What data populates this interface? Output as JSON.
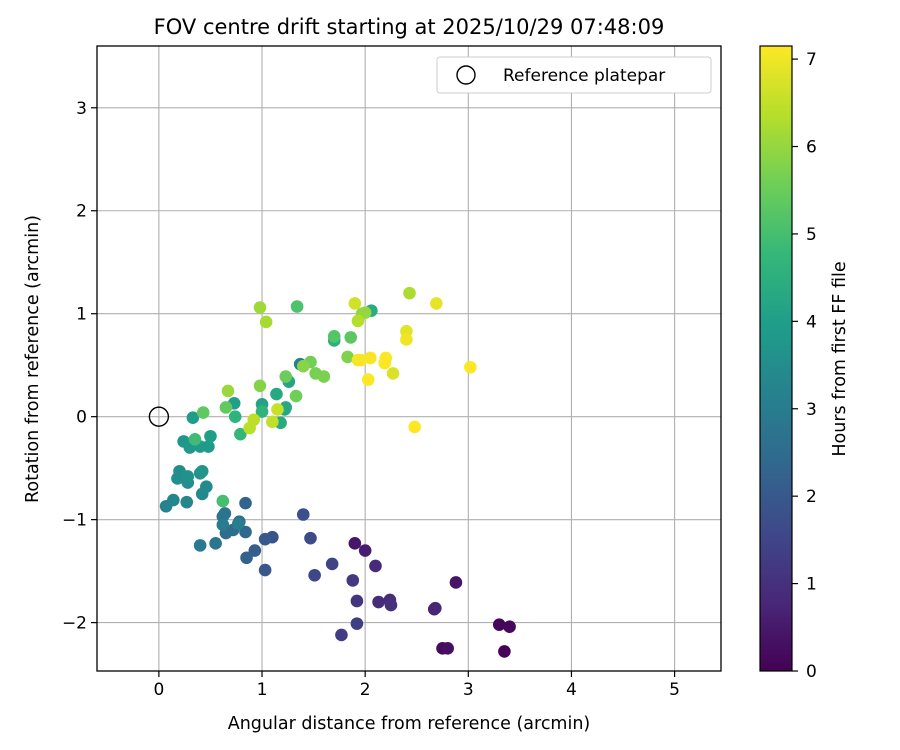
{
  "chart_data": {
    "type": "scatter",
    "title": "FOV centre drift starting at 2025/10/29 07:48:09",
    "xlabel": "Angular distance from reference (arcmin)",
    "ylabel": "Rotation from reference (arcmin)",
    "xlim": [
      -0.6,
      5.45
    ],
    "ylim": [
      -2.47,
      3.6
    ],
    "xticks": [
      0,
      1,
      2,
      3,
      4,
      5
    ],
    "yticks": [
      -2,
      -1,
      0,
      1,
      2,
      3
    ],
    "grid": true,
    "legend": {
      "position": "top-right",
      "entries": [
        "Reference platepar"
      ]
    },
    "reference_point": {
      "x": 0,
      "y": 0,
      "label": "Reference platepar"
    },
    "colorbar": {
      "label": "Hours from first FF file",
      "range": [
        0,
        7.15
      ],
      "ticks": [
        0,
        1,
        2,
        3,
        4,
        5,
        6,
        7
      ],
      "colormap": "viridis",
      "stops": [
        "#440154",
        "#482878",
        "#3e4989",
        "#31688e",
        "#26828e",
        "#1f9e89",
        "#35b779",
        "#6ece58",
        "#b5de2b",
        "#fde725"
      ]
    },
    "points": [
      {
        "x": 3.35,
        "y": -2.28,
        "t": 0.05
      },
      {
        "x": 3.3,
        "y": -2.02,
        "t": 0.1
      },
      {
        "x": 3.4,
        "y": -2.04,
        "t": 0.15
      },
      {
        "x": 2.75,
        "y": -2.25,
        "t": 0.2
      },
      {
        "x": 2.8,
        "y": -2.25,
        "t": 0.3
      },
      {
        "x": 2.88,
        "y": -1.61,
        "t": 0.4
      },
      {
        "x": 1.9,
        "y": -1.23,
        "t": 0.45
      },
      {
        "x": 2.0,
        "y": -1.3,
        "t": 0.6
      },
      {
        "x": 2.67,
        "y": -1.87,
        "t": 0.7
      },
      {
        "x": 2.68,
        "y": -1.86,
        "t": 0.75
      },
      {
        "x": 2.1,
        "y": -1.45,
        "t": 0.85
      },
      {
        "x": 2.13,
        "y": -1.8,
        "t": 0.9
      },
      {
        "x": 2.24,
        "y": -1.78,
        "t": 0.95
      },
      {
        "x": 2.25,
        "y": -1.83,
        "t": 1.0
      },
      {
        "x": 1.92,
        "y": -1.79,
        "t": 1.1
      },
      {
        "x": 1.88,
        "y": -1.59,
        "t": 1.2
      },
      {
        "x": 1.77,
        "y": -2.12,
        "t": 1.3
      },
      {
        "x": 1.92,
        "y": -2.01,
        "t": 1.35
      },
      {
        "x": 1.68,
        "y": -1.43,
        "t": 1.45
      },
      {
        "x": 1.51,
        "y": -1.54,
        "t": 1.55
      },
      {
        "x": 1.47,
        "y": -1.18,
        "t": 1.65
      },
      {
        "x": 1.4,
        "y": -0.95,
        "t": 1.75
      },
      {
        "x": 1.1,
        "y": -1.17,
        "t": 1.85
      },
      {
        "x": 1.03,
        "y": -1.49,
        "t": 1.95
      },
      {
        "x": 1.03,
        "y": -1.19,
        "t": 2.0
      },
      {
        "x": 0.93,
        "y": -1.3,
        "t": 2.1
      },
      {
        "x": 0.85,
        "y": -1.37,
        "t": 2.2
      },
      {
        "x": 0.84,
        "y": -0.84,
        "t": 2.3
      },
      {
        "x": 0.84,
        "y": -1.12,
        "t": 2.4
      },
      {
        "x": 0.65,
        "y": -1.13,
        "t": 2.5
      },
      {
        "x": 0.72,
        "y": -1.1,
        "t": 2.55
      },
      {
        "x": 0.78,
        "y": -1.02,
        "t": 2.6
      },
      {
        "x": 0.62,
        "y": -0.97,
        "t": 2.7
      },
      {
        "x": 0.64,
        "y": -0.94,
        "t": 2.75
      },
      {
        "x": 0.55,
        "y": -1.23,
        "t": 2.8
      },
      {
        "x": 0.4,
        "y": -1.25,
        "t": 2.9
      },
      {
        "x": 0.62,
        "y": -1.05,
        "t": 3.0
      },
      {
        "x": 0.77,
        "y": -1.04,
        "t": 3.05
      },
      {
        "x": 1.37,
        "y": 0.51,
        "t": 3.1
      },
      {
        "x": 0.07,
        "y": -0.87,
        "t": 3.2
      },
      {
        "x": 0.14,
        "y": -0.81,
        "t": 3.25
      },
      {
        "x": 0.27,
        "y": -0.83,
        "t": 3.3
      },
      {
        "x": 0.42,
        "y": -0.75,
        "t": 3.35
      },
      {
        "x": 0.46,
        "y": -0.68,
        "t": 3.4
      },
      {
        "x": 0.28,
        "y": -0.64,
        "t": 3.45
      },
      {
        "x": 0.2,
        "y": -0.53,
        "t": 3.5
      },
      {
        "x": 0.18,
        "y": -0.6,
        "t": 3.55
      },
      {
        "x": 0.28,
        "y": -0.58,
        "t": 3.6
      },
      {
        "x": 0.4,
        "y": -0.55,
        "t": 3.65
      },
      {
        "x": 0.42,
        "y": -0.53,
        "t": 3.7
      },
      {
        "x": 0.24,
        "y": -0.24,
        "t": 3.75
      },
      {
        "x": 0.3,
        "y": -0.3,
        "t": 3.8
      },
      {
        "x": 0.4,
        "y": -0.29,
        "t": 3.85
      },
      {
        "x": 0.48,
        "y": -0.29,
        "t": 3.9
      },
      {
        "x": 0.33,
        "y": -0.01,
        "t": 3.95
      },
      {
        "x": 0.5,
        "y": -0.19,
        "t": 4.0
      },
      {
        "x": 0.73,
        "y": 0.13,
        "t": 4.05
      },
      {
        "x": 1.0,
        "y": 0.12,
        "t": 4.1
      },
      {
        "x": 1.22,
        "y": 0.07,
        "t": 4.15
      },
      {
        "x": 1.26,
        "y": 0.34,
        "t": 4.2
      },
      {
        "x": 1.23,
        "y": 0.09,
        "t": 4.25
      },
      {
        "x": 1.14,
        "y": 0.22,
        "t": 4.3
      },
      {
        "x": 1.18,
        "y": -0.06,
        "t": 4.35
      },
      {
        "x": 2.06,
        "y": 1.03,
        "t": 4.4
      },
      {
        "x": 1.7,
        "y": 0.74,
        "t": 4.5
      },
      {
        "x": 0.74,
        "y": 0.0,
        "t": 4.6
      },
      {
        "x": 1.0,
        "y": 0.05,
        "t": 4.65
      },
      {
        "x": 0.79,
        "y": -0.17,
        "t": 4.75
      },
      {
        "x": 0.35,
        "y": -0.22,
        "t": 4.9
      },
      {
        "x": 0.62,
        "y": -0.82,
        "t": 5.0
      },
      {
        "x": 1.34,
        "y": 1.07,
        "t": 5.1
      },
      {
        "x": 1.7,
        "y": 0.78,
        "t": 5.2
      },
      {
        "x": 1.86,
        "y": 0.77,
        "t": 5.3
      },
      {
        "x": 0.43,
        "y": 0.04,
        "t": 5.35
      },
      {
        "x": 0.65,
        "y": 0.09,
        "t": 5.4
      },
      {
        "x": 1.23,
        "y": 0.39,
        "t": 5.5
      },
      {
        "x": 1.33,
        "y": 0.2,
        "t": 5.55
      },
      {
        "x": 1.47,
        "y": 0.53,
        "t": 5.6
      },
      {
        "x": 1.52,
        "y": 0.42,
        "t": 5.65
      },
      {
        "x": 1.6,
        "y": 0.39,
        "t": 5.7
      },
      {
        "x": 1.83,
        "y": 0.58,
        "t": 5.75
      },
      {
        "x": 0.98,
        "y": 0.3,
        "t": 5.8
      },
      {
        "x": 1.4,
        "y": 0.49,
        "t": 5.85
      },
      {
        "x": 1.97,
        "y": 1.0,
        "t": 5.95
      },
      {
        "x": 2.0,
        "y": 1.01,
        "t": 6.0
      },
      {
        "x": 0.67,
        "y": 0.25,
        "t": 6.05
      },
      {
        "x": 0.98,
        "y": 1.06,
        "t": 6.1
      },
      {
        "x": 1.04,
        "y": 0.92,
        "t": 6.2
      },
      {
        "x": 2.43,
        "y": 1.2,
        "t": 6.25
      },
      {
        "x": 1.93,
        "y": 0.93,
        "t": 6.35
      },
      {
        "x": 0.88,
        "y": -0.11,
        "t": 6.4
      },
      {
        "x": 0.92,
        "y": -0.03,
        "t": 6.45
      },
      {
        "x": 1.1,
        "y": -0.05,
        "t": 6.5
      },
      {
        "x": 1.15,
        "y": 0.07,
        "t": 6.55
      },
      {
        "x": 1.9,
        "y": 1.1,
        "t": 6.65
      },
      {
        "x": 2.27,
        "y": 0.42,
        "t": 6.75
      },
      {
        "x": 2.4,
        "y": 0.83,
        "t": 6.85
      },
      {
        "x": 2.69,
        "y": 1.1,
        "t": 6.9
      },
      {
        "x": 2.4,
        "y": 0.75,
        "t": 7.0
      },
      {
        "x": 1.93,
        "y": 0.55,
        "t": 7.05
      },
      {
        "x": 1.96,
        "y": 0.55,
        "t": 7.08
      },
      {
        "x": 2.05,
        "y": 0.57,
        "t": 7.1
      },
      {
        "x": 2.19,
        "y": 0.52,
        "t": 7.12
      },
      {
        "x": 2.2,
        "y": 0.57,
        "t": 7.13
      },
      {
        "x": 2.03,
        "y": 0.36,
        "t": 7.14
      },
      {
        "x": 2.48,
        "y": -0.1,
        "t": 7.15
      },
      {
        "x": 3.02,
        "y": 0.48,
        "t": 7.15
      }
    ]
  }
}
